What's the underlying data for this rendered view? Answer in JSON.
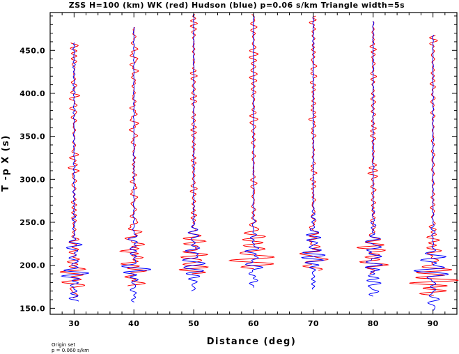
{
  "chart_data": {
    "type": "line",
    "title": "ZSS H=100 (km) WK (red) Hudson (blue) p=0.06 s/km Triangle width=5s",
    "xlabel": "Distance (deg)",
    "ylabel": "T -p X (s)",
    "xlim": [
      26,
      94
    ],
    "ylim": [
      143,
      494
    ],
    "x_ticks": [
      "30",
      "40",
      "50",
      "60",
      "70",
      "80",
      "90"
    ],
    "y_ticks": [
      "150.0",
      "200.0",
      "250.0",
      "300.0",
      "350.0",
      "400.0",
      "450.0"
    ],
    "x_tick_values": [
      30,
      40,
      50,
      60,
      70,
      80,
      90
    ],
    "y_tick_values": [
      150,
      200,
      250,
      300,
      350,
      400,
      450
    ],
    "grid": false,
    "series_colors": {
      "WK": "#ff0000",
      "Hudson": "#0000ff"
    },
    "series": [
      {
        "name": "WK",
        "color": "#ff0000"
      },
      {
        "name": "Hudson",
        "color": "#0000ff"
      }
    ],
    "traces": [
      {
        "distance": 30,
        "start": 158,
        "end": 459,
        "red_start": 162,
        "red_end": 459,
        "arrival": 200,
        "amp": 2.4,
        "red_amp": 2.2,
        "coda_amp": 0.5,
        "seed": 3
      },
      {
        "distance": 40,
        "start": 157,
        "end": 477,
        "red_start": 176,
        "red_end": 477,
        "arrival": 200,
        "amp": 2.4,
        "red_amp": 2.8,
        "coda_amp": 0.3,
        "seed": 7
      },
      {
        "distance": 50,
        "start": 170,
        "end": 492,
        "red_start": 190,
        "red_end": 492,
        "arrival": 205,
        "amp": 2.6,
        "red_amp": 2.8,
        "coda_amp": 0.3,
        "seed": 11
      },
      {
        "distance": 60,
        "start": 174,
        "end": 492,
        "red_start": 196,
        "red_end": 492,
        "arrival": 210,
        "amp": 2.4,
        "red_amp": 3.0,
        "coda_amp": 0.3,
        "seed": 17
      },
      {
        "distance": 70,
        "start": 172,
        "end": 490,
        "red_start": 194,
        "red_end": 490,
        "arrival": 210,
        "amp": 2.4,
        "red_amp": 2.8,
        "coda_amp": 0.3,
        "seed": 23
      },
      {
        "distance": 80,
        "start": 164,
        "end": 484,
        "red_start": 190,
        "red_end": 484,
        "arrival": 205,
        "amp": 2.4,
        "red_amp": 2.8,
        "coda_amp": 0.3,
        "seed": 29
      },
      {
        "distance": 90,
        "start": 147,
        "end": 468,
        "red_start": 165,
        "red_end": 468,
        "arrival": 190,
        "amp": 2.4,
        "red_amp": 2.8,
        "coda_amp": 0.3,
        "seed": 31
      }
    ]
  },
  "footer": {
    "line1": "Origin set",
    "line2": "p = 0.060 s/km"
  }
}
